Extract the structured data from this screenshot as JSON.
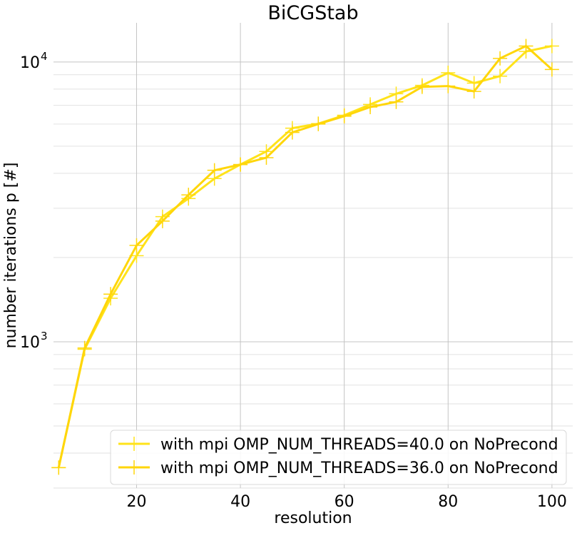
{
  "chart_data": {
    "type": "line",
    "title": "BiCGStab",
    "xlabel": "resolution",
    "ylabel": "number iterations p [#]",
    "y_scale": "log",
    "xlim": [
      4,
      104
    ],
    "ylim": [
      300,
      13800
    ],
    "x_ticks": [
      20,
      40,
      60,
      80,
      100
    ],
    "x_tick_labels": [
      "20",
      "40",
      "60",
      "80",
      "100"
    ],
    "y_major_ticks": [
      1000,
      10000
    ],
    "y_major_tick_labels": [
      "10",
      "10"
    ],
    "y_major_tick_exponents": [
      "3",
      "4"
    ],
    "y_minor_ticks": [
      300,
      400,
      500,
      600,
      700,
      800,
      900,
      2000,
      3000,
      4000,
      5000,
      6000,
      7000,
      8000,
      9000
    ],
    "grid": true,
    "marker": "+",
    "legend_position": "lower-right",
    "series": [
      {
        "name": "with mpi OMP_NUM_THREADS=40.0 on NoPrecond",
        "color": "#ffe31a",
        "x": [
          5,
          10,
          15,
          20,
          25,
          30,
          35,
          40,
          45,
          50,
          55,
          60,
          65,
          70,
          75,
          80,
          85,
          90,
          95,
          100
        ],
        "y": [
          355,
          940,
          1430,
          2030,
          2800,
          3250,
          3830,
          4300,
          4790,
          5800,
          6020,
          6450,
          7050,
          7700,
          8250,
          9150,
          8400,
          8900,
          10900,
          11400
        ]
      },
      {
        "name": "with mpi OMP_NUM_THREADS=36.0 on NoPrecond",
        "color": "#ffd60a",
        "x": [
          5,
          10,
          15,
          20,
          25,
          30,
          35,
          40,
          45,
          50,
          55,
          60,
          65,
          70,
          75,
          80,
          85,
          90,
          95,
          100
        ],
        "y": [
          355,
          950,
          1480,
          2210,
          2700,
          3350,
          4100,
          4300,
          4550,
          5600,
          6000,
          6400,
          6900,
          7200,
          8150,
          8200,
          7850,
          10300,
          11400,
          9400
        ]
      }
    ]
  }
}
